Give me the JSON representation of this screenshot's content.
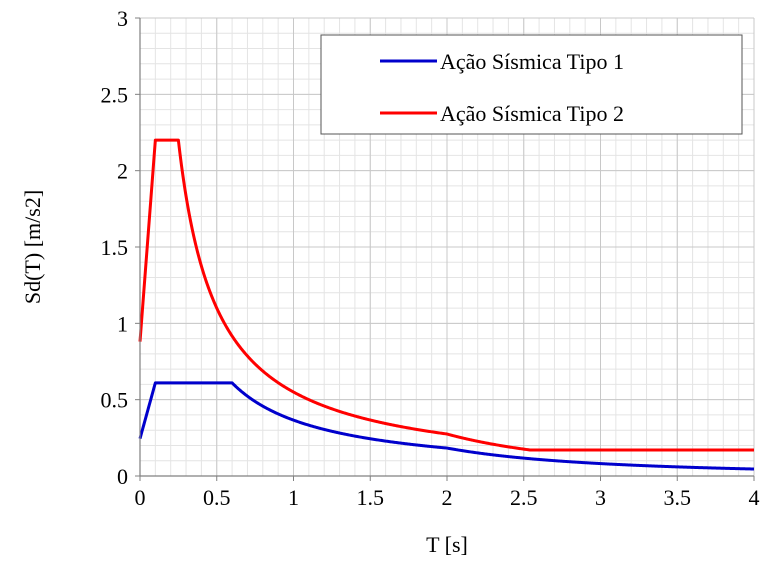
{
  "chart_data": {
    "type": "line",
    "xlabel": "T [s]",
    "ylabel": "Sd(T) [m/s2]",
    "xlim": [
      0,
      4
    ],
    "ylim": [
      0,
      3
    ],
    "x_ticks": [
      "0",
      "0.5",
      "1",
      "1.5",
      "2",
      "2.5",
      "3",
      "3.5",
      "4"
    ],
    "y_ticks": [
      "0",
      "0.5",
      "1",
      "1.5",
      "2",
      "2.5",
      "3"
    ],
    "x_tick_values": [
      0,
      0.5,
      1,
      1.5,
      2,
      2.5,
      3,
      3.5,
      4
    ],
    "y_tick_values": [
      0,
      0.5,
      1,
      1.5,
      2,
      2.5,
      3
    ],
    "minor_grid_step_x": 0.1,
    "minor_grid_step_y": 0.1,
    "grid": true,
    "legend_position": "top-right",
    "series": [
      {
        "name": "Ação Sísmica Tipo 1",
        "color": "#0000cc",
        "params": {
          "S0": 0.245,
          "Smax": 0.61,
          "TB": 0.1,
          "TC": 0.6,
          "TD": 2.0,
          "Tend": 4.0
        }
      },
      {
        "name": "Ação Sísmica Tipo 2",
        "color": "#ff0000",
        "params": {
          "S0": 0.88,
          "Smax": 2.2,
          "TB": 0.1,
          "TC": 0.25,
          "TD": 2.0,
          "floor": 0.17,
          "Tend": 4.0
        }
      }
    ]
  }
}
